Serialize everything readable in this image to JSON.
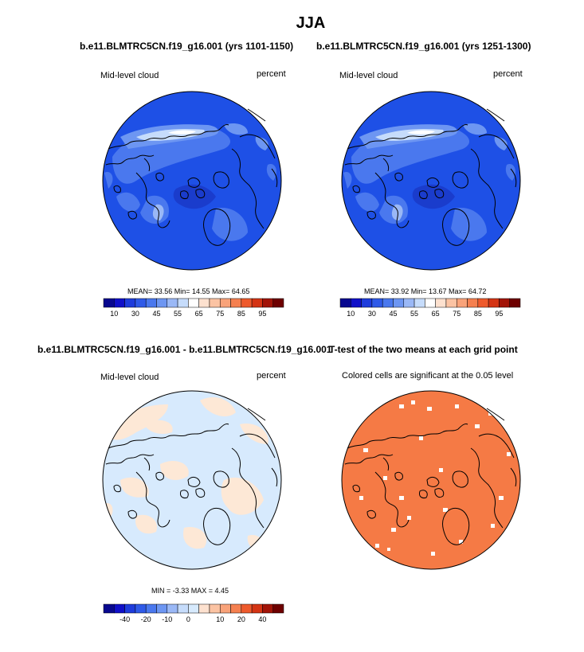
{
  "main_title": "JJA",
  "panels": {
    "tl": {
      "title": "b.e11.BLMTRC5CN.f19_g16.001 (yrs 1101-1150)",
      "left_label": "Mid-level cloud",
      "right_label": "percent",
      "stats": "MEAN=  33.56  Min=  14.55  Max=  64.65"
    },
    "tr": {
      "title": "b.e11.BLMTRC5CN.f19_g16.001 (yrs 1251-1300)",
      "left_label": "Mid-level cloud",
      "right_label": "percent",
      "stats": "MEAN=  33.92  Min=  13.67  Max=  64.72"
    },
    "bl": {
      "title": "b.e11.BLMTRC5CN.f19_g16.001 - b.e11.BLMTRC5CN.f19_g16.001",
      "left_label": "Mid-level cloud",
      "right_label": "percent",
      "stats": "MIN =  -3.33 MAX =   4.45"
    },
    "br": {
      "title": "T-test of the two means at each grid point",
      "subtitle": "Colored cells are significant at the 0.05 level"
    }
  },
  "colorbars": {
    "abs": {
      "colors": [
        "#08088f",
        "#1010c8",
        "#1e3cdc",
        "#2f5ae8",
        "#4a78ee",
        "#6d96f2",
        "#9ab8f6",
        "#c6dcfb",
        "#ffffff",
        "#fde1cf",
        "#fbc3a3",
        "#f9a37a",
        "#f58050",
        "#ee5a2c",
        "#d43414",
        "#a21408",
        "#6e0000"
      ],
      "tick_labels": [
        "10",
        "30",
        "45",
        "55",
        "65",
        "75",
        "85",
        "95"
      ],
      "tick_positions": [
        1,
        3,
        5,
        7,
        9,
        11,
        13,
        15
      ]
    },
    "diff": {
      "colors": [
        "#08088f",
        "#1010c8",
        "#1e3cdc",
        "#2f5ae8",
        "#4a78ee",
        "#6d96f2",
        "#9ab8f6",
        "#c6dcfb",
        "#d7eafd",
        "#fde1cf",
        "#fbc3a3",
        "#f9a37a",
        "#f58050",
        "#ee5a2c",
        "#d43414",
        "#a21408",
        "#6e0000"
      ],
      "tick_labels": [
        "-40",
        "-20",
        "-10",
        "0",
        "10",
        "20",
        "40"
      ],
      "tick_positions": [
        2,
        4,
        6,
        8,
        11,
        13,
        15
      ]
    }
  },
  "chart_data": [
    {
      "type": "heatmap",
      "title": "b.e11.BLMTRC5CN.f19_g16.001 (yrs 1101-1150)",
      "variable": "Mid-level cloud",
      "units": "percent",
      "projection": "north polar stereographic",
      "mean": 33.56,
      "min": 14.55,
      "max": 64.65,
      "levels": [
        10,
        30,
        45,
        55,
        65,
        75,
        85,
        95
      ]
    },
    {
      "type": "heatmap",
      "title": "b.e11.BLMTRC5CN.f19_g16.001 (yrs 1251-1300)",
      "variable": "Mid-level cloud",
      "units": "percent",
      "projection": "north polar stereographic",
      "mean": 33.92,
      "min": 13.67,
      "max": 64.72,
      "levels": [
        10,
        30,
        45,
        55,
        65,
        75,
        85,
        95
      ]
    },
    {
      "type": "heatmap",
      "title": "b.e11.BLMTRC5CN.f19_g16.001 - b.e11.BLMTRC5CN.f19_g16.001",
      "variable": "Mid-level cloud",
      "units": "percent",
      "projection": "north polar stereographic",
      "min": -3.33,
      "max": 4.45,
      "levels": [
        -40,
        -20,
        -10,
        0,
        10,
        20,
        40
      ]
    },
    {
      "type": "heatmap",
      "title": "T-test of the two means at each grid point",
      "subtitle": "Colored cells are significant at the 0.05 level",
      "projection": "north polar stereographic"
    }
  ]
}
